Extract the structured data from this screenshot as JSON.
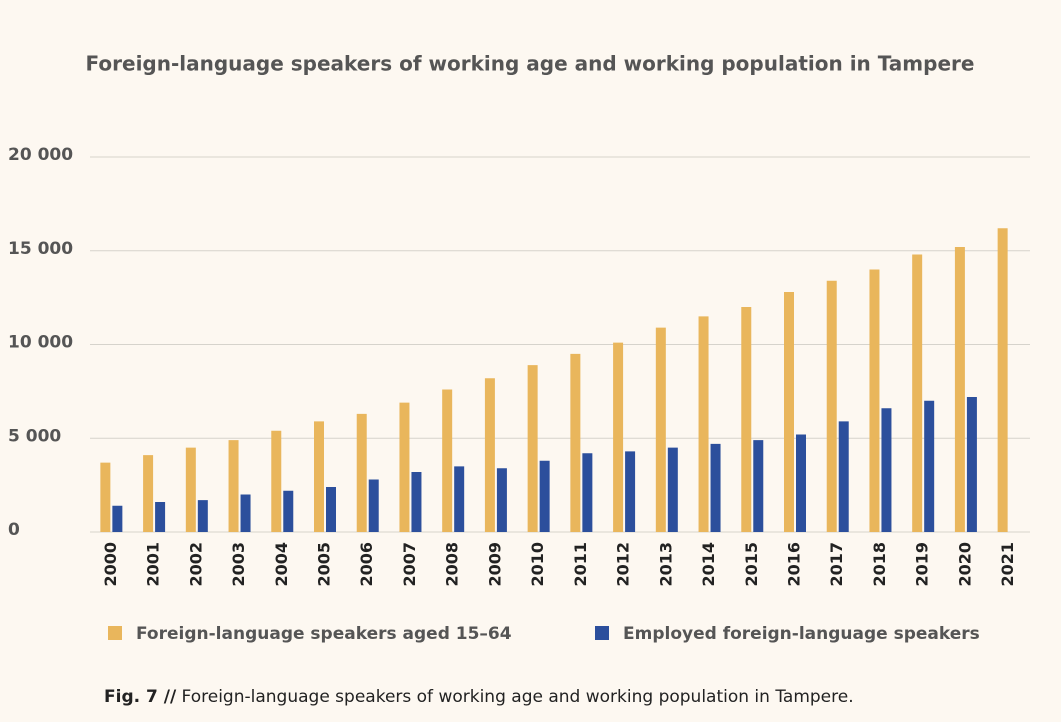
{
  "chart_data": {
    "type": "bar",
    "title": "Foreign-language speakers of working age and working population in Tampere",
    "categories": [
      "2000",
      "2001",
      "2002",
      "2003",
      "2004",
      "2005",
      "2006",
      "2007",
      "2008",
      "2009",
      "2010",
      "2011",
      "2012",
      "2013",
      "2014",
      "2015",
      "2016",
      "2017",
      "2018",
      "2019",
      "2020",
      "2021"
    ],
    "series": [
      {
        "name": "Foreign-language speakers aged 15–64",
        "color": "#e9b65c",
        "values": [
          3700,
          4100,
          4500,
          4900,
          5400,
          5900,
          6300,
          6900,
          7600,
          8200,
          8900,
          9500,
          10100,
          10900,
          11500,
          12000,
          12800,
          13400,
          14000,
          14800,
          15200,
          16200
        ]
      },
      {
        "name": "Employed foreign-language speakers",
        "color": "#2c4f9c",
        "values": [
          1400,
          1600,
          1700,
          2000,
          2200,
          2400,
          2800,
          3200,
          3500,
          3400,
          3800,
          4200,
          4300,
          4500,
          4700,
          4900,
          5200,
          5900,
          6600,
          7000,
          7200,
          null
        ]
      }
    ],
    "ylim": [
      0,
      20000
    ],
    "yticks": [
      0,
      {
        "value": 5000,
        "label": "5 000"
      },
      {
        "value": 10000,
        "label": "10 000"
      },
      {
        "value": 15000,
        "label": "15 000"
      },
      {
        "value": 20000,
        "label": "20 000"
      }
    ],
    "grid": true,
    "legend": "bottom"
  },
  "caption": {
    "label": "Fig. 7 //",
    "text": " Foreign-language speakers of working age and working population in Tampere."
  }
}
